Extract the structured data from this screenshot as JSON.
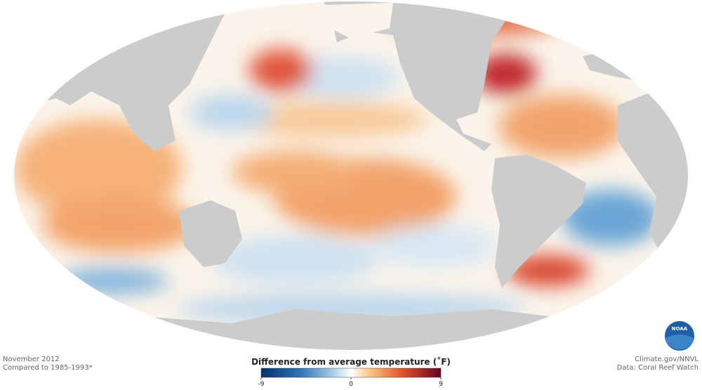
{
  "map": {
    "date": "November 2012",
    "baseline": "Compared to 1985-1993*",
    "credit": "Climate.gov/NNVL",
    "source": "Data: Coral Reef Watch",
    "logo_text": "NOAA"
  },
  "legend": {
    "title": "Difference from average temperature (˚F)",
    "range": [
      -9,
      9
    ],
    "ticks": [
      -9,
      0,
      9
    ]
  }
}
